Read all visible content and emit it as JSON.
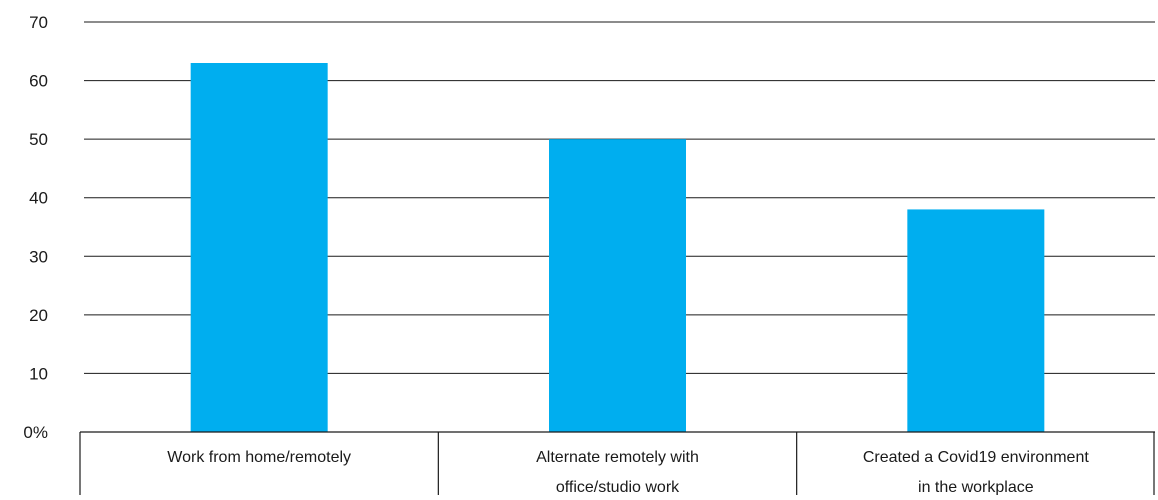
{
  "chart_data": {
    "type": "bar",
    "categories": [
      [
        "Work from home/remotely"
      ],
      [
        "Alternate remotely with",
        "office/studio work"
      ],
      [
        "Created a Covid19 environment",
        "in the workplace"
      ]
    ],
    "values": [
      63,
      50,
      38
    ],
    "ylim": [
      0,
      70
    ],
    "yticks": [
      {
        "value": 70,
        "label": "70"
      },
      {
        "value": 60,
        "label": "60"
      },
      {
        "value": 50,
        "label": "50"
      },
      {
        "value": 40,
        "label": "40"
      },
      {
        "value": 30,
        "label": "30"
      },
      {
        "value": 20,
        "label": "20"
      },
      {
        "value": 10,
        "label": "10"
      },
      {
        "value": 0,
        "label": "0%"
      }
    ],
    "grid": true,
    "bar_color": "#00AEEF",
    "grid_color": "#1a1a1a"
  }
}
